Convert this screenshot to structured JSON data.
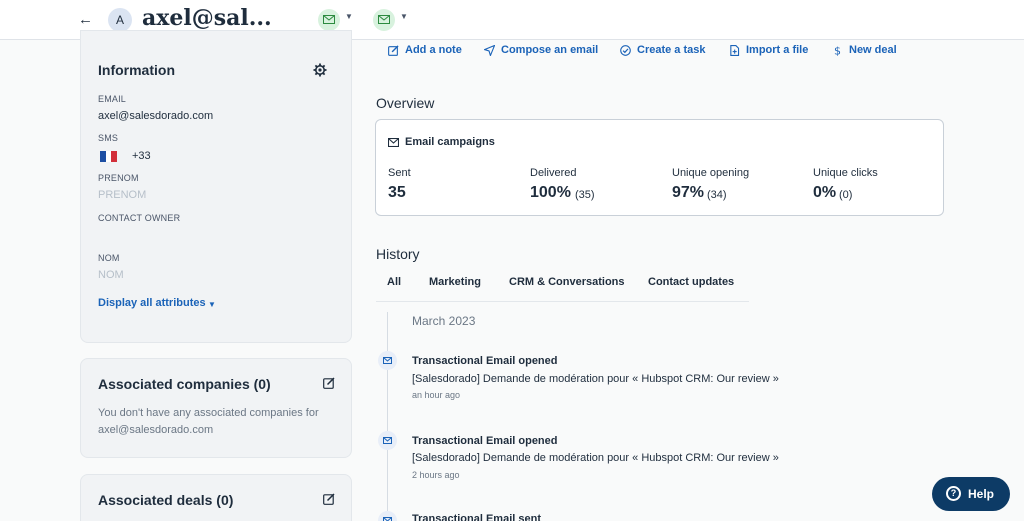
{
  "header": {
    "back_icon": "back-arrow-icon",
    "avatar_initial": "A",
    "contact_title": "axel@sal...",
    "status_chip_color": "#d8f2de",
    "status_icon": "envelope-icon"
  },
  "info_card": {
    "title": "Information",
    "settings_icon": "gear-icon",
    "email_label": "EMAIL",
    "email_value": "axel@salesdorado.com",
    "sms_label": "SMS",
    "sms_flag": "flag-fr-icon",
    "sms_code": "+33",
    "prenom_label": "PRENOM",
    "prenom_placeholder": "PRENOM",
    "owner_label": "CONTACT OWNER",
    "nom_label": "NOM",
    "nom_placeholder": "NOM",
    "display_all": "Display all attributes"
  },
  "companies_card": {
    "title": "Associated companies (0)",
    "empty_text": "You don't have any associated companies for axel@salesdorado.com"
  },
  "deals_card": {
    "title": "Associated deals (0)"
  },
  "actions": [
    {
      "label": "Add a note",
      "icon": "edit-icon"
    },
    {
      "label": "Compose an email",
      "icon": "send-icon"
    },
    {
      "label": "Create a task",
      "icon": "check-circle-icon"
    },
    {
      "label": "Import a file",
      "icon": "file-icon"
    },
    {
      "label": "New deal",
      "icon": "dollar-icon"
    }
  ],
  "overview": {
    "title": "Overview",
    "card_title": "Email campaigns",
    "stats": [
      {
        "label": "Sent",
        "value": "35",
        "sub": ""
      },
      {
        "label": "Delivered",
        "value": "100%",
        "sub": "(35)"
      },
      {
        "label": "Unique opening",
        "value": "97%",
        "sub": "(34)"
      },
      {
        "label": "Unique clicks",
        "value": "0%",
        "sub": "(0)"
      }
    ]
  },
  "history": {
    "title": "History",
    "tabs": [
      "All",
      "Marketing",
      "CRM & Conversations",
      "Contact updates"
    ],
    "active_tab": "All",
    "month": "March 2023",
    "events": [
      {
        "title": "Transactional Email opened",
        "desc": "[Salesdorado] Demande de modération pour « Hubspot CRM: Our review »",
        "time": "an hour ago"
      },
      {
        "title": "Transactional Email opened",
        "desc": "[Salesdorado] Demande de modération pour « Hubspot CRM: Our review »",
        "time": "2 hours ago"
      },
      {
        "title": "Transactional Email sent",
        "desc": "",
        "time": ""
      }
    ]
  },
  "help": {
    "label": "Help",
    "icon": "question-circle-icon",
    "color": "#0d3b66"
  },
  "colors": {
    "accent": "#1b63b8",
    "page_bg": "#f9fafa",
    "card_bg": "#f1f3f5"
  }
}
